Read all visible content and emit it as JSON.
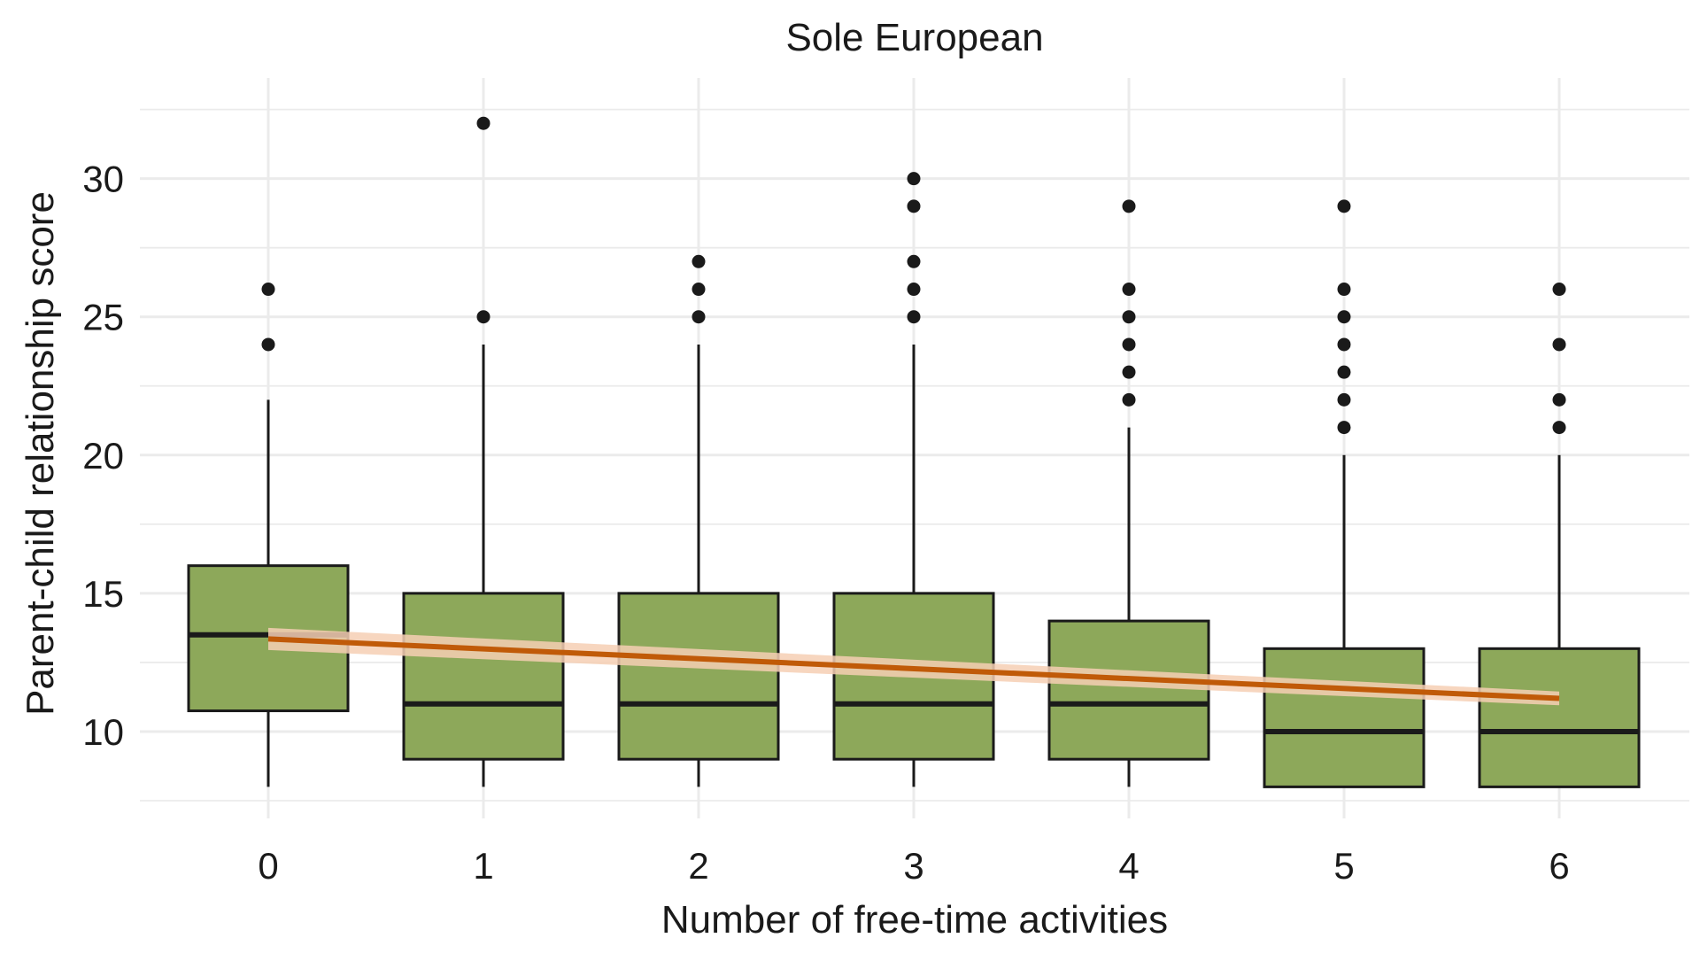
{
  "chart_data": {
    "type": "boxplot",
    "title": "Sole European",
    "xlabel": "Number of free-time activities",
    "ylabel": "Parent-child relationship score",
    "categories": [
      "0",
      "1",
      "2",
      "3",
      "4",
      "5",
      "6"
    ],
    "ylim": [
      7.5,
      33
    ],
    "yticks": [
      10,
      15,
      20,
      25,
      30
    ],
    "grid": true,
    "boxes": [
      {
        "category": "0",
        "whisker_low": 8,
        "q1": 10.75,
        "median": 13.5,
        "q3": 16,
        "whisker_high": 22,
        "outliers": [
          24,
          26
        ]
      },
      {
        "category": "1",
        "whisker_low": 8,
        "q1": 9,
        "median": 11,
        "q3": 15,
        "whisker_high": 24,
        "outliers": [
          25,
          32
        ]
      },
      {
        "category": "2",
        "whisker_low": 8,
        "q1": 9,
        "median": 11,
        "q3": 15,
        "whisker_high": 24,
        "outliers": [
          25,
          26,
          27
        ]
      },
      {
        "category": "3",
        "whisker_low": 8,
        "q1": 9,
        "median": 11,
        "q3": 15,
        "whisker_high": 24,
        "outliers": [
          25,
          26,
          27,
          29,
          30
        ]
      },
      {
        "category": "4",
        "whisker_low": 8,
        "q1": 9,
        "median": 11,
        "q3": 14,
        "whisker_high": 21,
        "outliers": [
          22,
          23,
          24,
          25,
          26,
          29
        ]
      },
      {
        "category": "5",
        "whisker_low": 8,
        "q1": 8,
        "median": 10,
        "q3": 13,
        "whisker_high": 20,
        "outliers": [
          21,
          22,
          23,
          24,
          25,
          26,
          29
        ]
      },
      {
        "category": "6",
        "whisker_low": 8,
        "q1": 8,
        "median": 10,
        "q3": 13,
        "whisker_high": 20,
        "outliers": [
          21,
          22,
          24,
          26
        ]
      }
    ],
    "trend_line": {
      "x": [
        0,
        6
      ],
      "y": [
        13.35,
        11.2
      ],
      "ci_low": [
        12.95,
        10.95
      ],
      "ci_high": [
        13.75,
        11.45
      ]
    },
    "colors": {
      "box_fill": "#8da85a",
      "box_stroke": "#1a1a1a",
      "trend": "#c05a08",
      "ci_band": "#f6cfb4",
      "grid": "#ebebeb",
      "outlier": "#1a1a1a"
    }
  }
}
